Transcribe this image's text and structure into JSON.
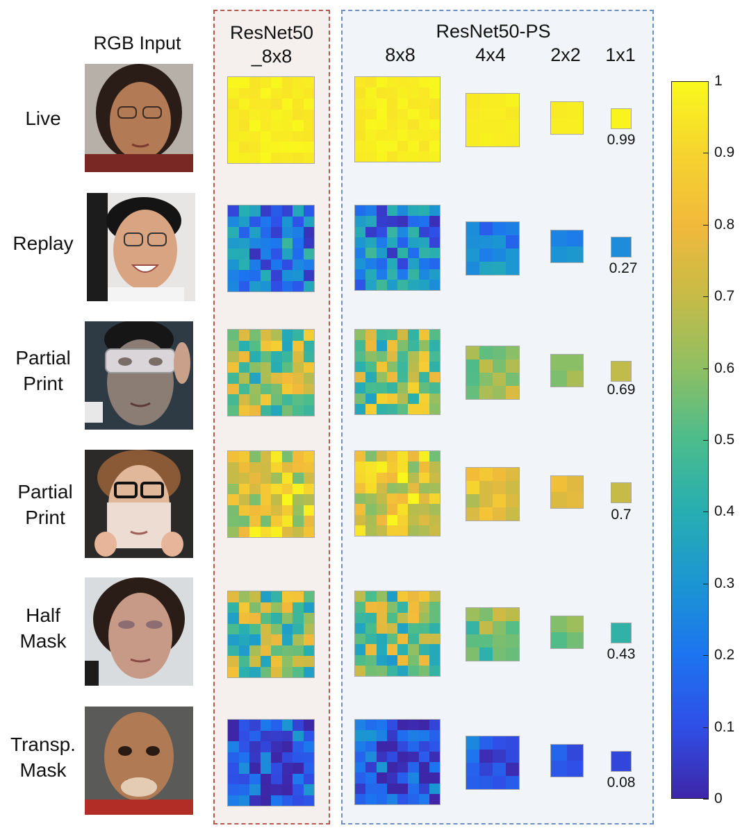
{
  "headers": {
    "rgb_input": "RGB Input",
    "resnet50_8x8_line1": "ResNet50",
    "resnet50_8x8_line2": "_8x8",
    "resnet50_ps": "ResNet50-PS",
    "col_8x8": "8x8",
    "col_4x4": "4x4",
    "col_2x2": "2x2",
    "col_1x1": "1x1"
  },
  "rows": [
    {
      "label_line1": "Live",
      "label_line2": "",
      "score": "0.99"
    },
    {
      "label_line1": "Replay",
      "label_line2": "",
      "score": "0.27"
    },
    {
      "label_line1": "Partial",
      "label_line2": "Print",
      "score": "0.69"
    },
    {
      "label_line1": "Partial",
      "label_line2": "Print",
      "score": "0.7"
    },
    {
      "label_line1": "Half",
      "label_line2": "Mask",
      "score": "0.43"
    },
    {
      "label_line1": "Transp.",
      "label_line2": "Mask",
      "score": "0.08"
    }
  ],
  "colorbar": {
    "ticks": [
      "1",
      "0.9",
      "0.8",
      "0.7",
      "0.6",
      "0.5",
      "0.4",
      "0.3",
      "0.2",
      "0.1",
      "0"
    ],
    "colors": [
      "#3e26a8",
      "#2f4fe6",
      "#1d74f0",
      "#1c96d2",
      "#27aeb2",
      "#4bbc8c",
      "#8fbf63",
      "#c6bb47",
      "#f1b93b",
      "#f6d42f",
      "#f9f81c"
    ]
  }
}
